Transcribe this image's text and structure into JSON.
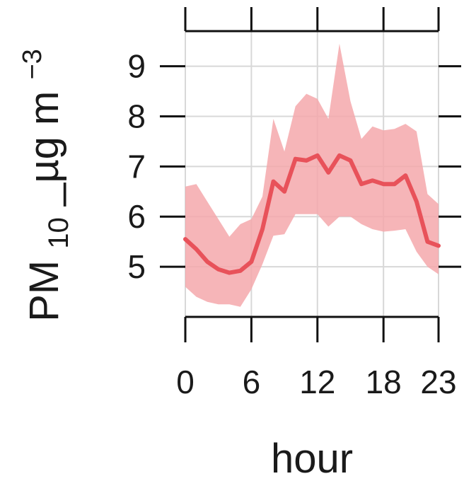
{
  "chart_data": {
    "type": "line",
    "title": "",
    "xlabel": "hour",
    "ylabel": {
      "base": "PM",
      "subscript": "10",
      "main": "_µg m",
      "superscript": "−3"
    },
    "x": [
      0,
      1,
      2,
      3,
      4,
      5,
      6,
      7,
      8,
      9,
      10,
      11,
      12,
      13,
      14,
      15,
      16,
      17,
      18,
      19,
      20,
      21,
      22,
      23
    ],
    "series": [
      {
        "values": [
          5.55,
          5.35,
          5.1,
          4.95,
          4.88,
          4.92,
          5.1,
          5.75,
          6.7,
          6.5,
          7.15,
          7.12,
          7.22,
          6.88,
          7.22,
          7.12,
          6.65,
          6.72,
          6.65,
          6.65,
          6.82,
          6.3,
          5.5,
          5.42
        ],
        "lower": [
          4.6,
          4.4,
          4.3,
          4.25,
          4.25,
          4.2,
          4.55,
          5.05,
          5.62,
          5.65,
          6.05,
          6.05,
          6.05,
          5.8,
          6.0,
          6.0,
          5.85,
          5.75,
          5.7,
          5.72,
          5.75,
          5.3,
          5.0,
          4.85
        ],
        "upper": [
          6.6,
          6.65,
          6.3,
          5.95,
          5.6,
          5.85,
          5.95,
          6.4,
          7.95,
          7.3,
          8.2,
          8.45,
          8.35,
          7.95,
          9.45,
          8.3,
          7.55,
          7.8,
          7.72,
          7.75,
          7.85,
          7.7,
          6.45,
          6.25
        ],
        "color": "#e8525a",
        "band_color": "#f5a8ab"
      }
    ],
    "xticks": [
      0,
      6,
      12,
      18,
      23
    ],
    "yticks": [
      5,
      6,
      7,
      8,
      9
    ],
    "xlim": [
      0,
      23
    ],
    "ylim": [
      4,
      9.7
    ],
    "grid": true,
    "legend": "none"
  }
}
